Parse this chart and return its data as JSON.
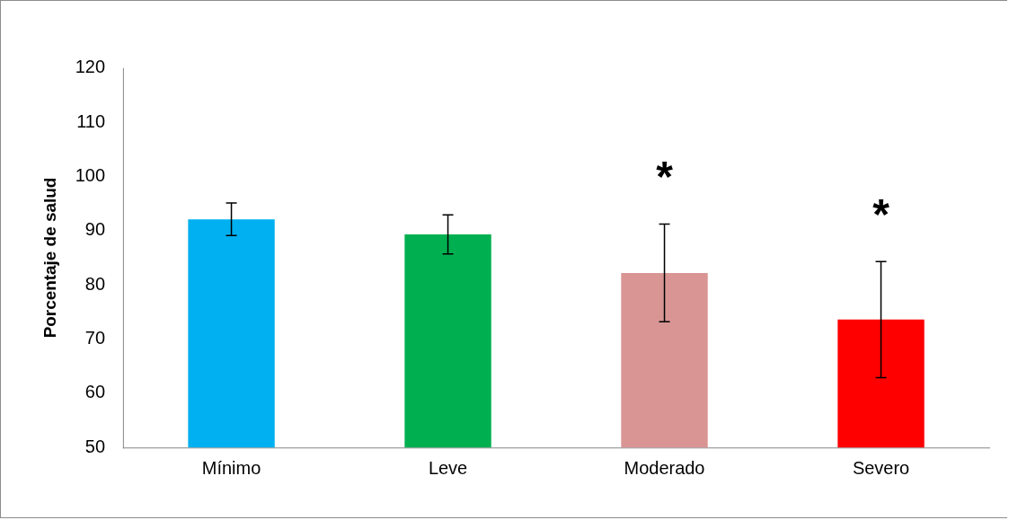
{
  "chart_data": {
    "type": "bar",
    "ylabel": "Porcentaje de salud",
    "categories": [
      "Mínimo",
      "Leve",
      "Moderado",
      "Severo"
    ],
    "values": [
      92.1,
      89.3,
      82.2,
      73.6
    ],
    "colors": [
      "#00b0f0",
      "#00b050",
      "#d99594",
      "#ff0000"
    ],
    "errors": [
      3,
      3.6,
      9,
      10.7
    ],
    "ylim": [
      50,
      120
    ],
    "yticks": [
      50,
      60,
      70,
      80,
      90,
      100,
      110,
      120
    ],
    "grid": false,
    "annotations": [
      "*",
      "*"
    ]
  }
}
